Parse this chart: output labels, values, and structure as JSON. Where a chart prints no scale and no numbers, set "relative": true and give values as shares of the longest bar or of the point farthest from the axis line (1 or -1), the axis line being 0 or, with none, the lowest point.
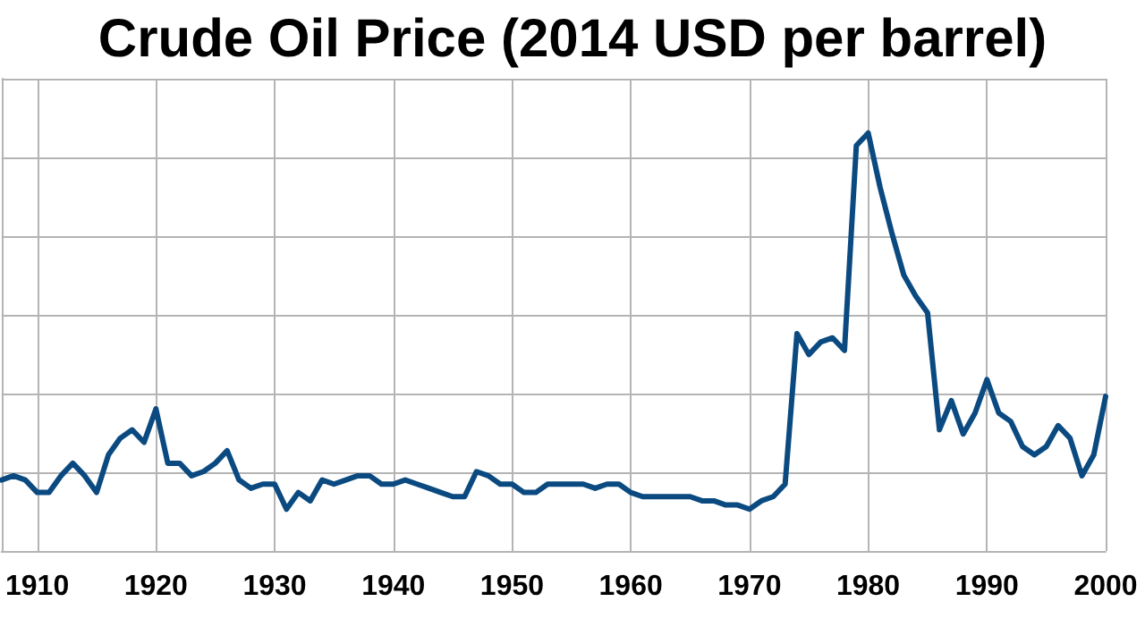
{
  "chart_data": {
    "type": "line",
    "title": "Crude Oil Price (2014 USD per barrel)",
    "relative": true,
    "tick_labels": "x",
    "grid": true,
    "marker": "none",
    "line_style": "solid",
    "xlim": [
      1907,
      2000
    ],
    "xticks": [
      1910,
      1920,
      1930,
      1940,
      1950,
      1960,
      1970,
      1980,
      1990,
      2000
    ],
    "x": [
      1907,
      1908,
      1909,
      1910,
      1911,
      1912,
      1913,
      1914,
      1915,
      1916,
      1917,
      1918,
      1919,
      1920,
      1921,
      1922,
      1923,
      1924,
      1925,
      1926,
      1927,
      1928,
      1929,
      1930,
      1931,
      1932,
      1933,
      1934,
      1935,
      1936,
      1937,
      1938,
      1939,
      1940,
      1941,
      1942,
      1943,
      1944,
      1945,
      1946,
      1947,
      1948,
      1949,
      1950,
      1951,
      1952,
      1953,
      1954,
      1955,
      1956,
      1957,
      1958,
      1959,
      1960,
      1961,
      1962,
      1963,
      1964,
      1965,
      1966,
      1967,
      1968,
      1969,
      1970,
      1971,
      1972,
      1973,
      1974,
      1975,
      1976,
      1977,
      1978,
      1979,
      1980,
      1981,
      1982,
      1983,
      1984,
      1985,
      1986,
      1987,
      1988,
      1989,
      1990,
      1991,
      1992,
      1993,
      1994,
      1995,
      1996,
      1997,
      1998,
      1999,
      2000
    ],
    "series": [
      {
        "color": "#0b4a80",
        "values": [
          0.17,
          0.18,
          0.17,
          0.14,
          0.14,
          0.18,
          0.21,
          0.18,
          0.14,
          0.23,
          0.27,
          0.29,
          0.26,
          0.34,
          0.21,
          0.21,
          0.18,
          0.19,
          0.21,
          0.24,
          0.17,
          0.15,
          0.16,
          0.16,
          0.1,
          0.14,
          0.12,
          0.17,
          0.16,
          0.17,
          0.18,
          0.18,
          0.16,
          0.16,
          0.17,
          0.16,
          0.15,
          0.14,
          0.13,
          0.13,
          0.19,
          0.18,
          0.16,
          0.16,
          0.14,
          0.14,
          0.16,
          0.16,
          0.16,
          0.16,
          0.15,
          0.16,
          0.16,
          0.14,
          0.13,
          0.13,
          0.13,
          0.13,
          0.13,
          0.12,
          0.12,
          0.11,
          0.11,
          0.1,
          0.12,
          0.13,
          0.16,
          0.52,
          0.47,
          0.5,
          0.51,
          0.48,
          0.97,
          1,
          0.87,
          0.76,
          0.66,
          0.61,
          0.57,
          0.29,
          0.36,
          0.28,
          0.33,
          0.41,
          0.33,
          0.31,
          0.25,
          0.23,
          0.25,
          0.3,
          0.27,
          0.18,
          0.23,
          0.37
        ]
      }
    ]
  }
}
